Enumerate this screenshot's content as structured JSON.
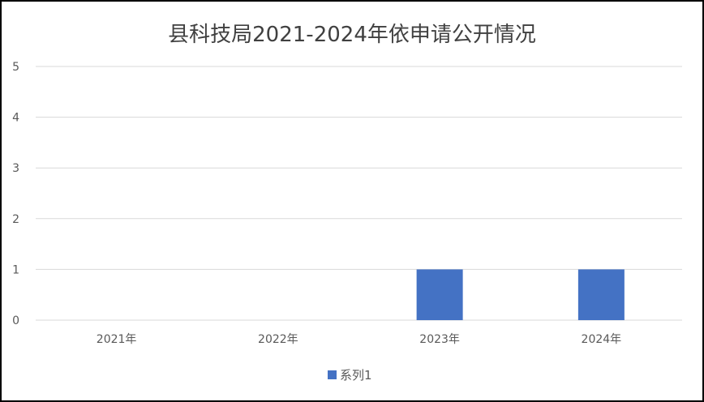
{
  "chart_data": {
    "type": "bar",
    "title": "县科技局2021-2024年依申请公开情况",
    "categories": [
      "2021年",
      "2022年",
      "2023年",
      "2024年"
    ],
    "series": [
      {
        "name": "系列1",
        "values": [
          0,
          0,
          1,
          1
        ],
        "color": "#4472C4"
      }
    ],
    "ylim": [
      0,
      5
    ],
    "yticks": [
      "0",
      "1",
      "2",
      "3",
      "4",
      "5"
    ],
    "grid": true,
    "legend": "bottom",
    "xlabel": "",
    "ylabel": ""
  }
}
